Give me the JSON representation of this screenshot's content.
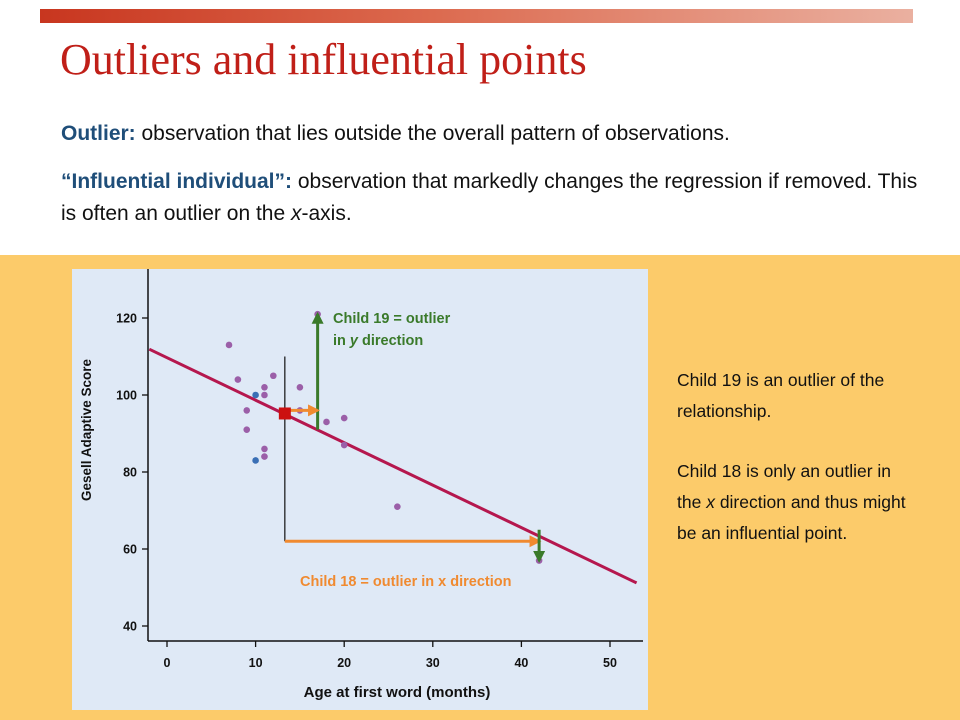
{
  "slide": {
    "title": "Outliers and influential points",
    "outlier_term": "Outlier:",
    "outlier_def": " observation that lies outside the overall pattern of observations.",
    "influential_term": "“Influential individual”:",
    "influential_def_1": " observation that markedly changes the regression if removed. This is often an outlier on the ",
    "influential_def_x": "x",
    "influential_def_2": "-axis.",
    "side_text_1": "Child 19 is an outlier of the relationship.",
    "side_text_2a": "Child 18 is only an outlier in the ",
    "side_text_2x": "x",
    "side_text_2b": " direction and thus might be an influential point."
  },
  "chart_data": {
    "type": "scatter",
    "xlabel": "Age at first word (months)",
    "ylabel": "Gesell Adaptive Score",
    "xlim": [
      -2,
      53
    ],
    "ylim": [
      38,
      128
    ],
    "x_ticks": [
      0,
      10,
      20,
      30,
      40,
      50
    ],
    "y_ticks": [
      40,
      60,
      80,
      100,
      120
    ],
    "points": [
      {
        "x": 7,
        "y": 113,
        "color": "#9b5fa8"
      },
      {
        "x": 8,
        "y": 104,
        "color": "#9b5fa8"
      },
      {
        "x": 9,
        "y": 96,
        "color": "#9b5fa8"
      },
      {
        "x": 9,
        "y": 91,
        "color": "#9b5fa8"
      },
      {
        "x": 10,
        "y": 100,
        "color": "#3a6fb5"
      },
      {
        "x": 10,
        "y": 83,
        "color": "#3a6fb5"
      },
      {
        "x": 11,
        "y": 102,
        "color": "#9b5fa8"
      },
      {
        "x": 11,
        "y": 100,
        "color": "#9b5fa8"
      },
      {
        "x": 11,
        "y": 86,
        "color": "#9b5fa8"
      },
      {
        "x": 11,
        "y": 84,
        "color": "#9b5fa8"
      },
      {
        "x": 12,
        "y": 105,
        "color": "#9b5fa8"
      },
      {
        "x": 15,
        "y": 102,
        "color": "#9b5fa8"
      },
      {
        "x": 15,
        "y": 96,
        "color": "#9b5fa8"
      },
      {
        "x": 17,
        "y": 121,
        "color": "#9b5fa8"
      },
      {
        "x": 18,
        "y": 93,
        "color": "#9b5fa8"
      },
      {
        "x": 20,
        "y": 94,
        "color": "#9b5fa8"
      },
      {
        "x": 20,
        "y": 87,
        "color": "#9b5fa8"
      },
      {
        "x": 26,
        "y": 71,
        "color": "#9b5fa8"
      },
      {
        "x": 42,
        "y": 57,
        "color": "#9b5fa8"
      }
    ],
    "regression_line": {
      "x": [
        -2,
        53
      ],
      "y": [
        111.9,
        51.2
      ],
      "color": "#b5174e"
    },
    "mean_marker": {
      "x": 13.3,
      "y": 95.2,
      "color": "#cc1010"
    },
    "annotations": [
      {
        "text_1": "Child 19 = outlier",
        "text_2a": "in ",
        "text_2y": "y",
        "text_2b": " direction",
        "color": "#3a7a2a"
      },
      {
        "text": "Child 18 = outlier in x direction",
        "color": "#f08a30"
      }
    ],
    "arrows": [
      {
        "name": "child19-vertical",
        "from": [
          17,
          91
        ],
        "to": [
          17,
          121
        ],
        "color": "#3a7a2a"
      },
      {
        "name": "child19-horizontal",
        "from": [
          13.3,
          96
        ],
        "to": [
          17,
          96
        ],
        "color": "#f08a30"
      },
      {
        "name": "child18-horizontal",
        "from": [
          13.3,
          62
        ],
        "to": [
          42,
          62
        ],
        "color": "#f08a30"
      },
      {
        "name": "child18-vertical",
        "from": [
          42,
          65
        ],
        "to": [
          42,
          57
        ],
        "color": "#3a7a2a"
      }
    ],
    "reference_line": {
      "x": 13.3,
      "y_from": 62,
      "y_to": 110
    }
  }
}
